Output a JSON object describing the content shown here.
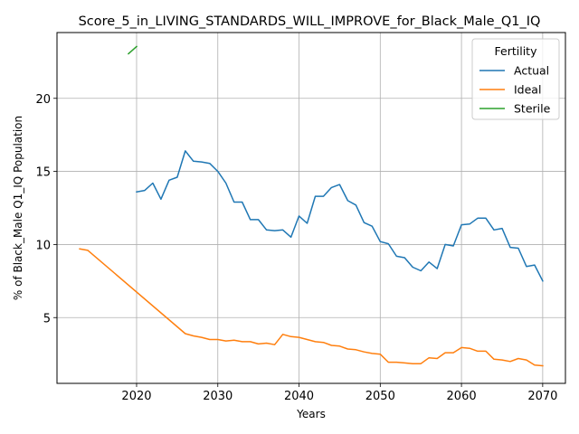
{
  "chart_data": {
    "type": "line",
    "title": "Score_5_in_LIVING_STANDARDS_WILL_IMPROVE_for_Black_Male_Q1_IQ",
    "xlabel": "Years",
    "ylabel": "% of Black_Male Q1_IQ Population",
    "xlim": [
      2010.2,
      2072.8
    ],
    "ylim": [
      0.5,
      24.5
    ],
    "xticks": [
      2020,
      2030,
      2040,
      2050,
      2060,
      2070
    ],
    "yticks": [
      5,
      10,
      15,
      20
    ],
    "grid": true,
    "legend": {
      "title": "Fertility",
      "placement": "top-right"
    },
    "series": [
      {
        "name": "Actual",
        "color": "#1f77b4",
        "x": [
          2020,
          2021,
          2022,
          2023,
          2024,
          2025,
          2026,
          2027,
          2028,
          2029,
          2030,
          2031,
          2032,
          2033,
          2034,
          2035,
          2036,
          2037,
          2038,
          2039,
          2040,
          2041,
          2042,
          2043,
          2044,
          2045,
          2046,
          2047,
          2048,
          2049,
          2050,
          2051,
          2052,
          2053,
          2054,
          2055,
          2056,
          2057,
          2058,
          2059,
          2060,
          2061,
          2062,
          2063,
          2064,
          2065,
          2066,
          2067,
          2068,
          2069,
          2070
        ],
        "y": [
          13.6,
          13.7,
          14.2,
          13.1,
          14.4,
          14.6,
          16.4,
          15.7,
          15.65,
          15.55,
          15.0,
          14.2,
          12.9,
          12.9,
          11.7,
          11.7,
          11.0,
          10.95,
          11.0,
          10.5,
          11.95,
          11.45,
          13.3,
          13.3,
          13.9,
          14.1,
          13.0,
          12.7,
          11.5,
          11.25,
          10.2,
          10.05,
          9.2,
          9.1,
          8.45,
          8.2,
          8.8,
          8.35,
          10.0,
          9.9,
          11.35,
          11.4,
          11.8,
          11.8,
          11.0,
          11.1,
          9.8,
          9.75,
          8.5,
          8.6,
          7.5
        ]
      },
      {
        "name": "Ideal",
        "color": "#ff7f0e",
        "x": [
          2013,
          2014,
          2026,
          2027,
          2028,
          2029,
          2030,
          2031,
          2032,
          2033,
          2034,
          2035,
          2036,
          2037,
          2038,
          2039,
          2040,
          2041,
          2042,
          2043,
          2044,
          2045,
          2046,
          2047,
          2048,
          2049,
          2050,
          2051,
          2052,
          2053,
          2054,
          2055,
          2056,
          2057,
          2058,
          2059,
          2060,
          2061,
          2062,
          2063,
          2064,
          2065,
          2066,
          2067,
          2068,
          2069,
          2070
        ],
        "y": [
          9.7,
          9.6,
          3.9,
          3.75,
          3.65,
          3.5,
          3.5,
          3.4,
          3.45,
          3.35,
          3.35,
          3.2,
          3.25,
          3.15,
          3.85,
          3.7,
          3.65,
          3.5,
          3.35,
          3.3,
          3.1,
          3.05,
          2.85,
          2.8,
          2.65,
          2.55,
          2.5,
          1.95,
          1.95,
          1.9,
          1.85,
          1.85,
          2.25,
          2.2,
          2.6,
          2.6,
          2.95,
          2.9,
          2.7,
          2.7,
          2.15,
          2.1,
          2.0,
          2.2,
          2.1,
          1.75,
          1.7
        ]
      },
      {
        "name": "Sterile",
        "color": "#2ca02c",
        "x": [
          2019,
          2020
        ],
        "y": [
          23.05,
          23.55
        ]
      }
    ]
  }
}
